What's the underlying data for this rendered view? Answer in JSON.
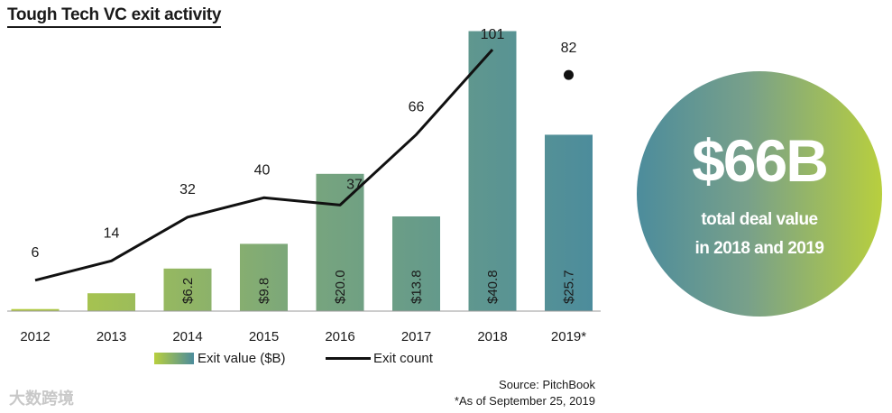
{
  "chart_data": {
    "type": "bar",
    "title": "Tough Tech VC exit activity",
    "categories": [
      "2012",
      "2013",
      "2014",
      "2015",
      "2016",
      "2017",
      "2018",
      "2019*"
    ],
    "series": [
      {
        "name": "Exit value ($B)",
        "type": "bar",
        "values": [
          0.3,
          2.6,
          6.2,
          9.8,
          20.0,
          13.8,
          40.8,
          25.7
        ],
        "labels": [
          "",
          "",
          "$6.2",
          "$9.8",
          "$20.0",
          "$13.8",
          "$40.8",
          "$25.7"
        ]
      },
      {
        "name": "Exit count",
        "type": "line",
        "values": [
          6,
          14,
          32,
          40,
          37,
          66,
          101,
          82
        ],
        "labels": [
          "6",
          "14",
          "32",
          "40",
          "37",
          "66",
          "101",
          "82"
        ]
      }
    ],
    "legend": [
      "Exit value ($B)",
      "Exit count"
    ],
    "legend_position": "bottom"
  },
  "callout": {
    "value": "$66B",
    "line1": "total deal value",
    "line2": "in 2018 and 2019"
  },
  "source": "Source: PitchBook",
  "note": "*As of September 25, 2019",
  "watermark": "大数跨境",
  "colors": {
    "bar_light": "#b8cf3e",
    "bar_dark": "#4c8c9c",
    "line": "#111111"
  }
}
